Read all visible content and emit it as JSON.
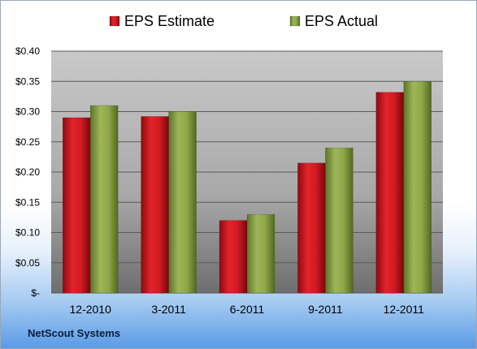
{
  "chart_data": {
    "type": "bar",
    "title": "",
    "xlabel": "",
    "ylabel": "",
    "categories": [
      "12-2010",
      "3-2011",
      "6-2011",
      "9-2011",
      "12-2011"
    ],
    "series": [
      {
        "name": "EPS Estimate",
        "color": "#c0121a",
        "values": [
          0.29,
          0.292,
          0.12,
          0.215,
          0.332
        ]
      },
      {
        "name": "EPS Actual",
        "color": "#7f9a3c",
        "values": [
          0.31,
          0.3,
          0.13,
          0.24,
          0.35
        ]
      }
    ],
    "ylim": [
      0,
      0.4
    ],
    "yticks": [
      0,
      0.05,
      0.1,
      0.15,
      0.2,
      0.25,
      0.3,
      0.35,
      0.4
    ],
    "ytick_labels": [
      "$-",
      "$0.05",
      "$0.10",
      "$0.15",
      "$0.20",
      "$0.25",
      "$0.30",
      "$0.35",
      "$0.40"
    ],
    "grid": true,
    "legend_position": "top"
  },
  "footer": {
    "company": "NetScout Systems"
  }
}
